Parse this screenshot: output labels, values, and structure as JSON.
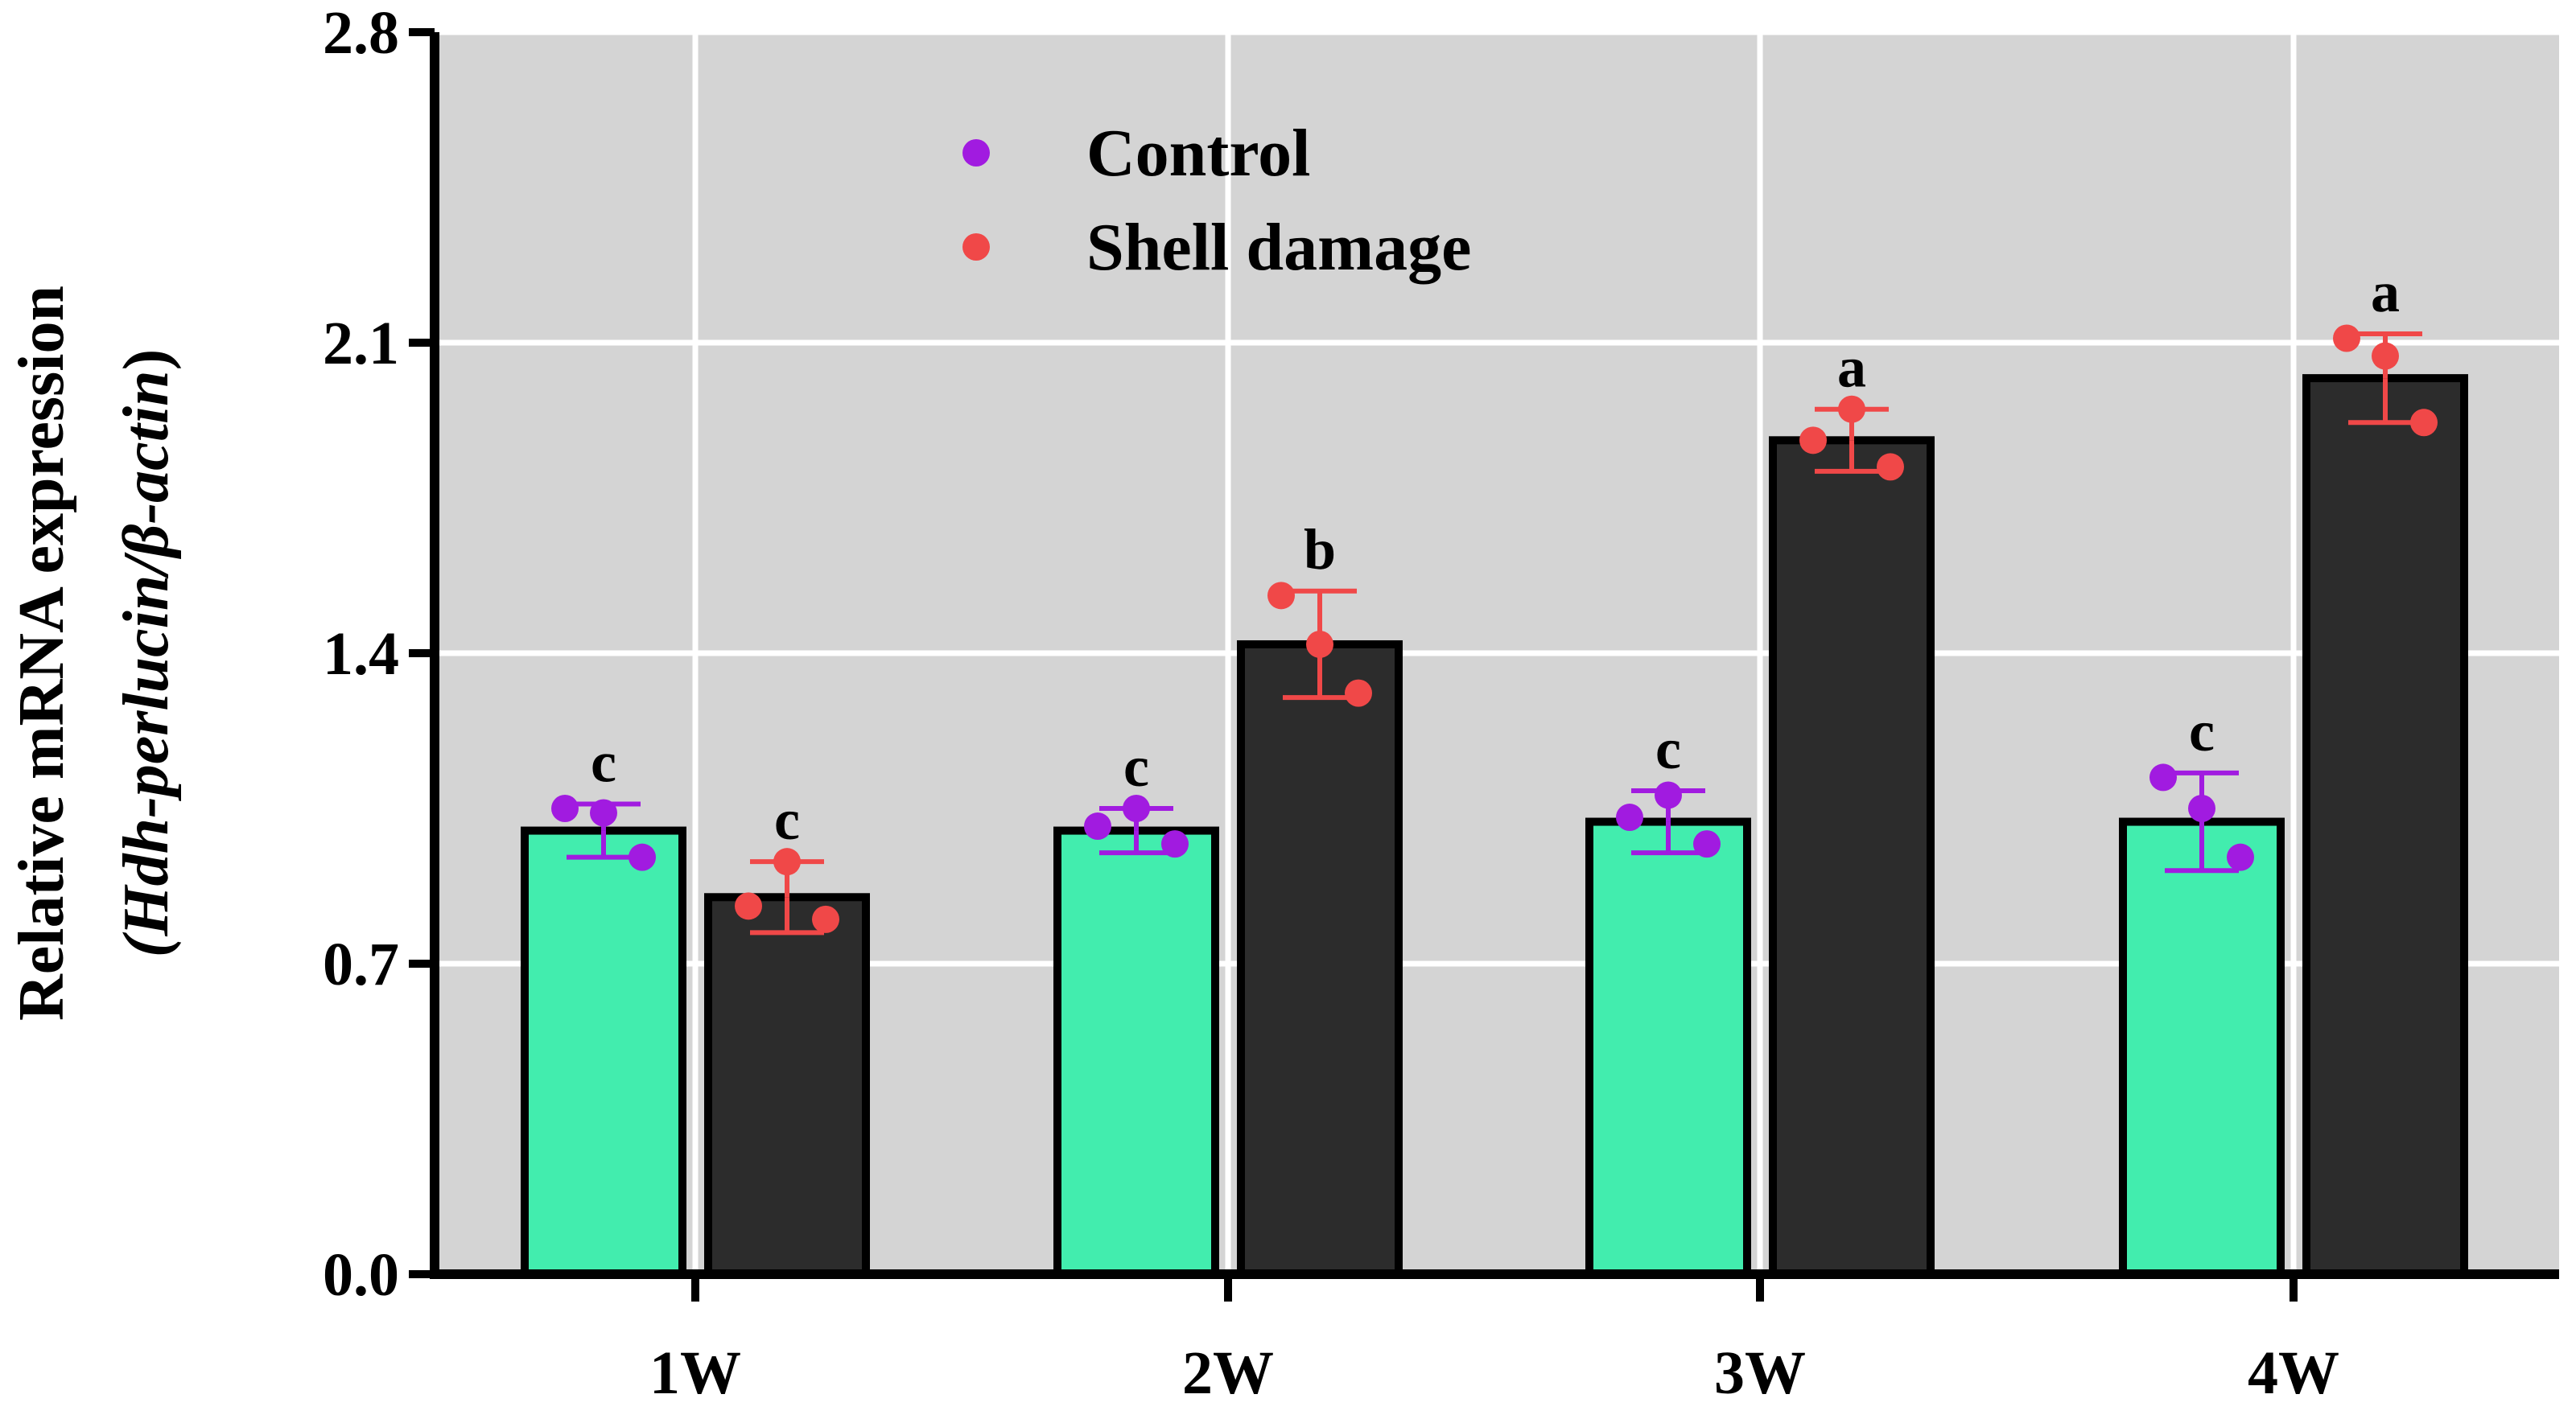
{
  "chart_data": {
    "type": "bar",
    "title": "",
    "xlabel": "",
    "ylabel_line1": "Relative mRNA expression",
    "ylabel_line2": "(Hdh-perlucin/β-actin",
    "ylabel_line2_close": ")",
    "ylim": [
      0,
      2.8
    ],
    "yticks": [
      "0.0",
      "0.7",
      "1.4",
      "2.1",
      "2.8"
    ],
    "ytick_values": [
      0,
      0.7,
      1.4,
      2.1,
      2.8
    ],
    "categories": [
      "1W",
      "2W",
      "3W",
      "4W"
    ],
    "grid": true,
    "legend_position": "top-center",
    "series": [
      {
        "name": "Control",
        "bar_color": "#42EDAE",
        "point_color": "#A11BE0",
        "values": [
          1.0,
          1.0,
          1.02,
          1.02
        ],
        "errors": [
          0.06,
          0.05,
          0.07,
          0.11
        ],
        "points": [
          [
            1.05,
            1.04,
            0.94
          ],
          [
            1.01,
            1.05,
            0.97
          ],
          [
            1.03,
            1.08,
            0.97
          ],
          [
            1.12,
            1.05,
            0.94
          ]
        ],
        "letters": [
          "c",
          "c",
          "c",
          "c"
        ]
      },
      {
        "name": "Shell damage",
        "bar_color": "#2C2C2C",
        "point_color": "#F04848",
        "values": [
          0.85,
          1.42,
          1.88,
          2.02
        ],
        "errors": [
          0.08,
          0.12,
          0.07,
          0.1
        ],
        "points": [
          [
            0.83,
            0.93,
            0.8
          ],
          [
            1.53,
            1.42,
            1.31
          ],
          [
            1.88,
            1.95,
            1.82
          ],
          [
            2.11,
            2.07,
            1.92
          ]
        ],
        "letters": [
          "c",
          "b",
          "a",
          "a"
        ]
      }
    ]
  }
}
